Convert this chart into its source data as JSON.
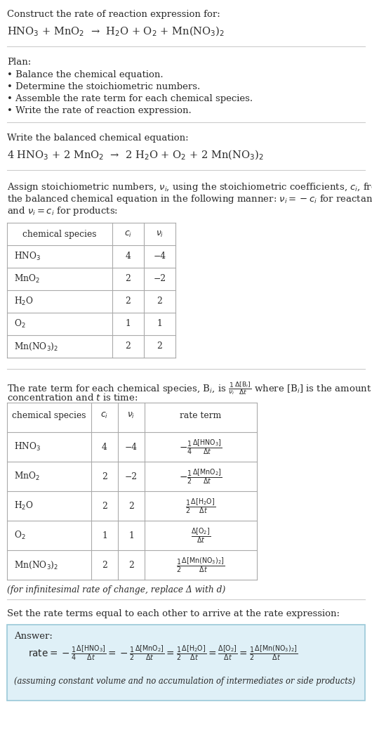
{
  "bg_color": "#ffffff",
  "text_color": "#2a2a2a",
  "separator_color": "#cccccc",
  "section1_title": "Construct the rate of reaction expression for:",
  "section1_eq": "HNO$_3$ + MnO$_2$  →  H$_2$O + O$_2$ + Mn(NO$_3$)$_2$",
  "section2_title": "Plan:",
  "section2_bullets": [
    "• Balance the chemical equation.",
    "• Determine the stoichiometric numbers.",
    "• Assemble the rate term for each chemical species.",
    "• Write the rate of reaction expression."
  ],
  "section3_title": "Write the balanced chemical equation:",
  "section3_eq": "4 HNO$_3$ + 2 MnO$_2$  →  2 H$_2$O + O$_2$ + 2 Mn(NO$_3$)$_2$",
  "section4_intro": "Assign stoichiometric numbers, $\\nu_i$, using the stoichiometric coefficients, $c_i$, from the balanced chemical equation in the following manner: $\\nu_i = -c_i$ for reactants and $\\nu_i = c_i$ for products:",
  "table1_headers": [
    "chemical species",
    "$c_i$",
    "$\\nu_i$"
  ],
  "table1_rows": [
    [
      "HNO$_3$",
      "4",
      "−4"
    ],
    [
      "MnO$_2$",
      "2",
      "−2"
    ],
    [
      "H$_2$O",
      "2",
      "2"
    ],
    [
      "O$_2$",
      "1",
      "1"
    ],
    [
      "Mn(NO$_3$)$_2$",
      "2",
      "2"
    ]
  ],
  "section5_intro_line1": "The rate term for each chemical species, B$_i$, is $\\frac{1}{\\nu_i}\\frac{\\Delta[\\mathrm{B}_i]}{\\Delta t}$ where [B$_i$] is the amount",
  "section5_intro_line2": "concentration and $t$ is time:",
  "table2_headers": [
    "chemical species",
    "$c_i$",
    "$\\nu_i$",
    "rate term"
  ],
  "table2_rows": [
    [
      "HNO$_3$",
      "4",
      "−4",
      "$-\\frac{1}{4}\\frac{\\Delta[\\mathrm{HNO_3}]}{\\Delta t}$"
    ],
    [
      "MnO$_2$",
      "2",
      "−2",
      "$-\\frac{1}{2}\\frac{\\Delta[\\mathrm{MnO_2}]}{\\Delta t}$"
    ],
    [
      "H$_2$O",
      "2",
      "2",
      "$\\frac{1}{2}\\frac{\\Delta[\\mathrm{H_2O}]}{\\Delta t}$"
    ],
    [
      "O$_2$",
      "1",
      "1",
      "$\\frac{\\Delta[\\mathrm{O_2}]}{\\Delta t}$"
    ],
    [
      "Mn(NO$_3$)$_2$",
      "2",
      "2",
      "$\\frac{1}{2}\\frac{\\Delta[\\mathrm{Mn(NO_3)_2}]}{\\Delta t}$"
    ]
  ],
  "section5_note": "(for infinitesimal rate of change, replace Δ with d)",
  "section6_title": "Set the rate terms equal to each other to arrive at the rate expression:",
  "answer_box_color": "#dff0f7",
  "answer_box_border": "#9ac8d8",
  "answer_label": "Answer:",
  "answer_eq": "$\\mathrm{rate} = -\\frac{1}{4}\\frac{\\Delta[\\mathrm{HNO_3}]}{\\Delta t} = -\\frac{1}{2}\\frac{\\Delta[\\mathrm{MnO_2}]}{\\Delta t} = \\frac{1}{2}\\frac{\\Delta[\\mathrm{H_2O}]}{\\Delta t} = \\frac{\\Delta[\\mathrm{O_2}]}{\\Delta t} = \\frac{1}{2}\\frac{\\Delta[\\mathrm{Mn(NO_3)_2}]}{\\Delta t}$",
  "answer_note": "(assuming constant volume and no accumulation of intermediates or side products)"
}
